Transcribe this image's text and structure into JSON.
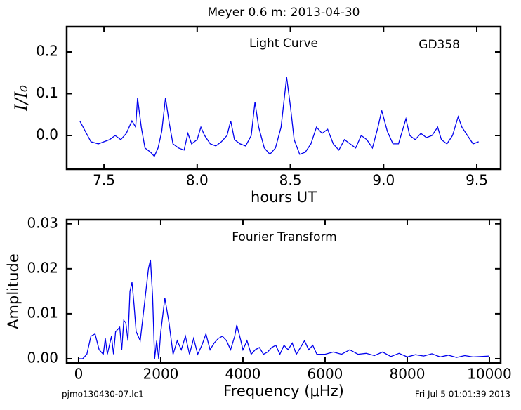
{
  "title": "Meyer 0.6 m:  2013-04-30",
  "footer": {
    "left": "pjmo130430-07.lc1",
    "right": "Fri Jul  5 01:01:39 2013"
  },
  "chart_data": [
    {
      "type": "line",
      "annotations": [
        "Light Curve",
        "GD358"
      ],
      "y_label": "I/I₀",
      "x_label": "hours UT",
      "color": "#0000ee",
      "x": [
        7.37,
        7.4,
        7.43,
        7.47,
        7.5,
        7.53,
        7.56,
        7.59,
        7.62,
        7.65,
        7.67,
        7.68,
        7.7,
        7.72,
        7.75,
        7.77,
        7.79,
        7.81,
        7.83,
        7.85,
        7.87,
        7.9,
        7.93,
        7.95,
        7.97,
        8.0,
        8.02,
        8.04,
        8.07,
        8.1,
        8.13,
        8.16,
        8.18,
        8.2,
        8.23,
        8.26,
        8.29,
        8.31,
        8.33,
        8.36,
        8.39,
        8.42,
        8.45,
        8.47,
        8.48,
        8.5,
        8.52,
        8.55,
        8.58,
        8.61,
        8.64,
        8.67,
        8.7,
        8.73,
        8.76,
        8.79,
        8.82,
        8.85,
        8.88,
        8.91,
        8.94,
        8.97,
        8.99,
        9.02,
        9.05,
        9.08,
        9.11,
        9.12,
        9.14,
        9.17,
        9.2,
        9.23,
        9.26,
        9.29,
        9.31,
        9.34,
        9.37,
        9.4,
        9.42,
        9.45,
        9.48,
        9.51
      ],
      "values": [
        0.035,
        0.01,
        -0.015,
        -0.02,
        -0.015,
        -0.01,
        0.0,
        -0.01,
        0.005,
        0.035,
        0.02,
        0.09,
        0.02,
        -0.03,
        -0.04,
        -0.05,
        -0.03,
        0.01,
        0.09,
        0.03,
        -0.02,
        -0.03,
        -0.035,
        0.005,
        -0.02,
        -0.01,
        0.02,
        0.0,
        -0.02,
        -0.025,
        -0.015,
        0.0,
        0.035,
        -0.01,
        -0.02,
        -0.025,
        0.0,
        0.08,
        0.02,
        -0.03,
        -0.045,
        -0.03,
        0.02,
        0.1,
        0.14,
        0.07,
        -0.01,
        -0.045,
        -0.04,
        -0.02,
        0.02,
        0.005,
        0.015,
        -0.02,
        -0.035,
        -0.01,
        -0.02,
        -0.03,
        0.0,
        -0.01,
        -0.03,
        0.02,
        0.06,
        0.01,
        -0.02,
        -0.02,
        0.025,
        0.04,
        0.0,
        -0.01,
        0.005,
        -0.005,
        0.0,
        0.02,
        -0.01,
        -0.02,
        0.0,
        0.045,
        0.02,
        0.0,
        -0.02,
        -0.015
      ],
      "xlim": [
        7.3,
        9.628
      ],
      "ylim": [
        -0.0807,
        0.2605
      ],
      "xticks": [
        7.5,
        {
          "value": 8,
          "label": "8.0"
        },
        8.5,
        {
          "value": 9,
          "label": "9.0"
        },
        9.5
      ],
      "yticks": [
        {
          "value": 0,
          "label": "0.0"
        },
        0.1,
        0.2
      ]
    },
    {
      "type": "line",
      "annotations": [
        "Fourier Transform"
      ],
      "y_label": "Amplitude",
      "x_label": "Frequency (μHz)",
      "color": "#0000ee",
      "x": [
        0,
        100,
        200,
        300,
        400,
        500,
        600,
        650,
        700,
        800,
        850,
        900,
        1000,
        1050,
        1100,
        1150,
        1200,
        1250,
        1300,
        1350,
        1400,
        1500,
        1600,
        1700,
        1750,
        1800,
        1850,
        1900,
        1950,
        2000,
        2100,
        2200,
        2300,
        2400,
        2500,
        2600,
        2700,
        2800,
        2900,
        3000,
        3100,
        3200,
        3300,
        3400,
        3500,
        3600,
        3700,
        3800,
        3850,
        3950,
        4000,
        4100,
        4200,
        4300,
        4400,
        4500,
        4600,
        4700,
        4800,
        4900,
        5000,
        5100,
        5200,
        5300,
        5400,
        5500,
        5600,
        5700,
        5800,
        6000,
        6200,
        6400,
        6600,
        6800,
        7000,
        7200,
        7400,
        7600,
        7800,
        8000,
        8200,
        8400,
        8600,
        8800,
        9000,
        9200,
        9400,
        9600,
        9800,
        10000
      ],
      "values": [
        0,
        0,
        0.001,
        0.005,
        0.0055,
        0.002,
        0.001,
        0.0045,
        0.001,
        0.005,
        0.001,
        0.006,
        0.007,
        0.002,
        0.0085,
        0.008,
        0.004,
        0.015,
        0.017,
        0.012,
        0.006,
        0.004,
        0.012,
        0.02,
        0.022,
        0.014,
        0.0,
        0.004,
        0.0,
        0.006,
        0.0135,
        0.008,
        0.001,
        0.004,
        0.002,
        0.005,
        0.001,
        0.0045,
        0.001,
        0.003,
        0.0055,
        0.002,
        0.0035,
        0.0045,
        0.005,
        0.004,
        0.002,
        0.005,
        0.0075,
        0.004,
        0.002,
        0.004,
        0.001,
        0.002,
        0.0025,
        0.001,
        0.0015,
        0.0025,
        0.003,
        0.001,
        0.003,
        0.002,
        0.0035,
        0.001,
        0.0025,
        0.004,
        0.002,
        0.003,
        0.001,
        0.001,
        0.0015,
        0.001,
        0.002,
        0.001,
        0.0012,
        0.0007,
        0.0015,
        0.0005,
        0.0012,
        0.0004,
        0.0009,
        0.0006,
        0.0011,
        0.0004,
        0.0008,
        0.0003,
        0.0007,
        0.0004,
        0.0005,
        0.0006
      ],
      "xlim": [
        -290,
        10274
      ],
      "ylim": [
        -0.00094,
        0.0309
      ],
      "xticks": [
        0,
        2000,
        4000,
        6000,
        8000,
        10000
      ],
      "yticks": [
        {
          "value": 0,
          "label": "0.00"
        },
        0.01,
        0.02,
        0.03
      ]
    }
  ]
}
